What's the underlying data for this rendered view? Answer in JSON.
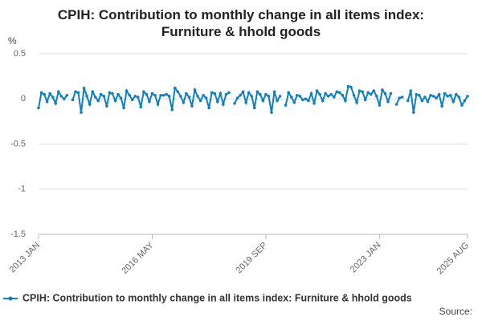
{
  "chart_data": {
    "type": "line",
    "title": "CPIH: Contribution to monthly change in all items index: Furniture & hhold goods",
    "y_label": "%",
    "source": "Source:",
    "categories": [
      "2013 JAN",
      null,
      null,
      null,
      null,
      null,
      null,
      null,
      null,
      null,
      null,
      null,
      null,
      null,
      null,
      null,
      null,
      null,
      null,
      null,
      null,
      null,
      null,
      null,
      null,
      null,
      null,
      null,
      null,
      null,
      null,
      null,
      null,
      null,
      null,
      null,
      null,
      null,
      null,
      null,
      "2016 MAY",
      null,
      null,
      null,
      null,
      null,
      null,
      null,
      null,
      null,
      null,
      null,
      null,
      null,
      null,
      null,
      null,
      null,
      null,
      null,
      null,
      null,
      null,
      null,
      null,
      null,
      null,
      null,
      null,
      null,
      null,
      null,
      null,
      null,
      null,
      null,
      null,
      null,
      null,
      null,
      "2019 SEP",
      null,
      null,
      null,
      null,
      null,
      null,
      null,
      null,
      null,
      null,
      null,
      null,
      null,
      null,
      null,
      null,
      null,
      null,
      null,
      null,
      null,
      null,
      null,
      null,
      null,
      null,
      null,
      null,
      null,
      null,
      null,
      null,
      null,
      null,
      null,
      null,
      null,
      null,
      null,
      "2023 JAN",
      null,
      null,
      null,
      null,
      null,
      null,
      null,
      null,
      null,
      null,
      null,
      null,
      null,
      null,
      null,
      null,
      null,
      null,
      null,
      null,
      null,
      null,
      null,
      null,
      null,
      null,
      null,
      null,
      null,
      null,
      "2025 AUG"
    ],
    "series": [
      {
        "name": "CPIH: Contribution to monthly change in all items index: Furniture & hhold goods",
        "color": "#0f7fc0",
        "values": [
          -0.1,
          0.07,
          0.05,
          -0.03,
          0.06,
          0.02,
          -0.05,
          0.08,
          0.03,
          0.0,
          0.04,
          null,
          -0.01,
          0.08,
          0.07,
          -0.15,
          0.12,
          0.03,
          -0.06,
          0.08,
          0.02,
          -0.02,
          0.05,
          0.03,
          -0.08,
          0.07,
          0.06,
          -0.02,
          0.05,
          0.01,
          -0.1,
          0.09,
          0.04,
          -0.01,
          0.03,
          0.02,
          -0.09,
          0.08,
          0.05,
          -0.03,
          0.06,
          0.04,
          -0.06,
          0.04,
          0.04,
          0.05,
          0.03,
          -0.12,
          0.12,
          0.08,
          0.03,
          -0.04,
          0.06,
          0.02,
          -0.08,
          0.1,
          0.03,
          -0.02,
          0.04,
          0.01,
          -0.1,
          0.07,
          0.06,
          -0.03,
          0.06,
          -0.06,
          0.05,
          0.07,
          null,
          -0.05,
          0.01,
          0.04,
          0.08,
          -0.04,
          0.07,
          0.03,
          -0.1,
          0.08,
          0.05,
          -0.02,
          0.05,
          0.03,
          -0.15,
          0.08,
          -0.02,
          0.03,
          null,
          -0.07,
          0.07,
          0.02,
          -0.04,
          0.04,
          0.03,
          -0.01,
          0.0,
          -0.02,
          0.06,
          -0.05,
          0.09,
          0.05,
          -0.02,
          0.06,
          0.03,
          0.05,
          0.02,
          0.08,
          0.07,
          0.04,
          -0.02,
          0.14,
          0.13,
          0.04,
          -0.04,
          0.09,
          0.08,
          -0.01,
          0.07,
          0.05,
          0.09,
          0.03,
          -0.07,
          0.1,
          0.06,
          -0.03,
          0.06,
          null,
          -0.06,
          0.01,
          0.02,
          null,
          -0.02,
          0.09,
          -0.15,
          0.05,
          0.04,
          -0.02,
          0.02,
          -0.03,
          0.04,
          0.03,
          0.01,
          0.05,
          -0.08,
          0.06,
          0.03,
          0.04,
          -0.03,
          0.05,
          0.02,
          -0.07,
          -0.02,
          0.03
        ]
      }
    ],
    "ylim": [
      -1.5,
      0.5
    ],
    "yticks": [
      0.5,
      0,
      -0.5,
      -1,
      -1.5
    ],
    "grid": true
  }
}
